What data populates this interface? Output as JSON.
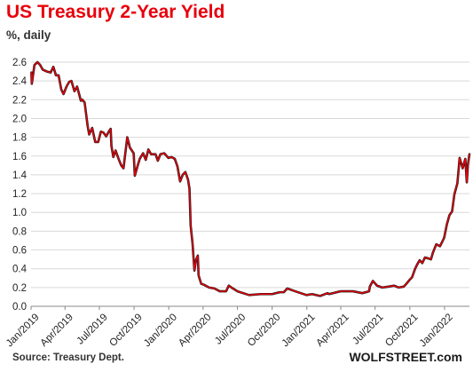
{
  "title": "US Treasury 2-Year Yield",
  "subtitle": "%, daily",
  "source": "Source: Treasury Dept.",
  "brand": "WOLFSTREET.com",
  "colors": {
    "title": "#e8000b",
    "line": "#e8000b",
    "line_shadow": "#1a1a1a",
    "grid": "#d9d9d9",
    "axis": "#888888"
  },
  "chart_data": {
    "type": "line",
    "title": "US Treasury 2-Year Yield",
    "ylabel": "%, daily",
    "ylim": [
      0.0,
      2.6
    ],
    "yticks": [
      "0.0",
      "0.2",
      "0.4",
      "0.6",
      "0.8",
      "1.0",
      "1.2",
      "1.4",
      "1.6",
      "1.8",
      "2.0",
      "2.2",
      "2.4",
      "2.6"
    ],
    "xlim": [
      "2019-01-01",
      "2022-03-08"
    ],
    "xticks": [
      {
        "date": "2019-01-01",
        "label": "Jan/2019"
      },
      {
        "date": "2019-04-01",
        "label": "Apr/2019"
      },
      {
        "date": "2019-07-01",
        "label": "Jul/2019"
      },
      {
        "date": "2019-10-01",
        "label": "Oct/2019"
      },
      {
        "date": "2020-01-01",
        "label": "Jan/2020"
      },
      {
        "date": "2020-04-01",
        "label": "Apr/2020"
      },
      {
        "date": "2020-07-01",
        "label": "Jul/2020"
      },
      {
        "date": "2020-10-01",
        "label": "Oct/2020"
      },
      {
        "date": "2021-01-01",
        "label": "Jan/2021"
      },
      {
        "date": "2021-04-01",
        "label": "Apr/2021"
      },
      {
        "date": "2021-07-01",
        "label": "Jul/2021"
      },
      {
        "date": "2021-10-01",
        "label": "Oct/2021"
      },
      {
        "date": "2022-01-01",
        "label": "Jan/2022"
      }
    ],
    "grid": "horizontal",
    "series": [
      {
        "points": [
          [
            "2019-01-02",
            2.49
          ],
          [
            "2019-01-03",
            2.37
          ],
          [
            "2019-01-10",
            2.57
          ],
          [
            "2019-01-18",
            2.6
          ],
          [
            "2019-01-25",
            2.57
          ],
          [
            "2019-02-01",
            2.52
          ],
          [
            "2019-02-12",
            2.5
          ],
          [
            "2019-02-22",
            2.49
          ],
          [
            "2019-03-01",
            2.55
          ],
          [
            "2019-03-08",
            2.46
          ],
          [
            "2019-03-15",
            2.46
          ],
          [
            "2019-03-22",
            2.31
          ],
          [
            "2019-03-28",
            2.26
          ],
          [
            "2019-04-05",
            2.34
          ],
          [
            "2019-04-12",
            2.39
          ],
          [
            "2019-04-18",
            2.4
          ],
          [
            "2019-04-26",
            2.29
          ],
          [
            "2019-05-03",
            2.34
          ],
          [
            "2019-05-13",
            2.19
          ],
          [
            "2019-05-17",
            2.2
          ],
          [
            "2019-05-23",
            2.17
          ],
          [
            "2019-05-31",
            1.92
          ],
          [
            "2019-06-04",
            1.83
          ],
          [
            "2019-06-12",
            1.9
          ],
          [
            "2019-06-20",
            1.75
          ],
          [
            "2019-06-28",
            1.75
          ],
          [
            "2019-07-05",
            1.86
          ],
          [
            "2019-07-12",
            1.85
          ],
          [
            "2019-07-19",
            1.81
          ],
          [
            "2019-07-26",
            1.86
          ],
          [
            "2019-07-31",
            1.89
          ],
          [
            "2019-08-02",
            1.71
          ],
          [
            "2019-08-07",
            1.59
          ],
          [
            "2019-08-13",
            1.66
          ],
          [
            "2019-08-21",
            1.57
          ],
          [
            "2019-08-28",
            1.5
          ],
          [
            "2019-09-03",
            1.47
          ],
          [
            "2019-09-13",
            1.8
          ],
          [
            "2019-09-20",
            1.69
          ],
          [
            "2019-09-30",
            1.63
          ],
          [
            "2019-10-03",
            1.39
          ],
          [
            "2019-10-10",
            1.49
          ],
          [
            "2019-10-16",
            1.57
          ],
          [
            "2019-10-25",
            1.63
          ],
          [
            "2019-11-01",
            1.56
          ],
          [
            "2019-11-08",
            1.67
          ],
          [
            "2019-11-15",
            1.62
          ],
          [
            "2019-11-27",
            1.62
          ],
          [
            "2019-12-03",
            1.55
          ],
          [
            "2019-12-10",
            1.62
          ],
          [
            "2019-12-20",
            1.63
          ],
          [
            "2019-12-31",
            1.58
          ],
          [
            "2020-01-08",
            1.59
          ],
          [
            "2020-01-17",
            1.57
          ],
          [
            "2020-01-24",
            1.49
          ],
          [
            "2020-01-31",
            1.33
          ],
          [
            "2020-02-07",
            1.4
          ],
          [
            "2020-02-14",
            1.43
          ],
          [
            "2020-02-21",
            1.35
          ],
          [
            "2020-02-25",
            1.25
          ],
          [
            "2020-02-28",
            0.86
          ],
          [
            "2020-03-04",
            0.67
          ],
          [
            "2020-03-09",
            0.38
          ],
          [
            "2020-03-13",
            0.49
          ],
          [
            "2020-03-18",
            0.54
          ],
          [
            "2020-03-20",
            0.33
          ],
          [
            "2020-03-27",
            0.24
          ],
          [
            "2020-04-03",
            0.23
          ],
          [
            "2020-04-17",
            0.2
          ],
          [
            "2020-05-01",
            0.19
          ],
          [
            "2020-05-15",
            0.16
          ],
          [
            "2020-06-01",
            0.16
          ],
          [
            "2020-06-08",
            0.22
          ],
          [
            "2020-06-19",
            0.19
          ],
          [
            "2020-07-01",
            0.16
          ],
          [
            "2020-08-01",
            0.12
          ],
          [
            "2020-09-01",
            0.13
          ],
          [
            "2020-10-01",
            0.13
          ],
          [
            "2020-10-21",
            0.15
          ],
          [
            "2020-11-01",
            0.15
          ],
          [
            "2020-11-10",
            0.19
          ],
          [
            "2020-12-01",
            0.16
          ],
          [
            "2020-12-31",
            0.12
          ],
          [
            "2021-01-15",
            0.13
          ],
          [
            "2021-02-05",
            0.11
          ],
          [
            "2021-02-25",
            0.14
          ],
          [
            "2021-03-01",
            0.13
          ],
          [
            "2021-03-31",
            0.16
          ],
          [
            "2021-04-15",
            0.16
          ],
          [
            "2021-05-03",
            0.16
          ],
          [
            "2021-05-28",
            0.14
          ],
          [
            "2021-06-15",
            0.16
          ],
          [
            "2021-06-17",
            0.21
          ],
          [
            "2021-06-25",
            0.27
          ],
          [
            "2021-07-06",
            0.22
          ],
          [
            "2021-07-20",
            0.2
          ],
          [
            "2021-08-06",
            0.21
          ],
          [
            "2021-08-20",
            0.22
          ],
          [
            "2021-09-01",
            0.2
          ],
          [
            "2021-09-15",
            0.21
          ],
          [
            "2021-09-22",
            0.24
          ],
          [
            "2021-09-30",
            0.28
          ],
          [
            "2021-10-07",
            0.31
          ],
          [
            "2021-10-15",
            0.4
          ],
          [
            "2021-10-21",
            0.45
          ],
          [
            "2021-10-27",
            0.49
          ],
          [
            "2021-11-03",
            0.46
          ],
          [
            "2021-11-10",
            0.52
          ],
          [
            "2021-11-19",
            0.51
          ],
          [
            "2021-11-26",
            0.5
          ],
          [
            "2021-12-01",
            0.57
          ],
          [
            "2021-12-10",
            0.66
          ],
          [
            "2021-12-20",
            0.64
          ],
          [
            "2021-12-31",
            0.73
          ],
          [
            "2022-01-07",
            0.87
          ],
          [
            "2022-01-14",
            0.97
          ],
          [
            "2022-01-21",
            1.01
          ],
          [
            "2022-01-27",
            1.19
          ],
          [
            "2022-02-04",
            1.31
          ],
          [
            "2022-02-10",
            1.58
          ],
          [
            "2022-02-18",
            1.47
          ],
          [
            "2022-02-25",
            1.57
          ],
          [
            "2022-03-01",
            1.32
          ],
          [
            "2022-03-04",
            1.51
          ],
          [
            "2022-03-08",
            1.62
          ]
        ]
      }
    ]
  }
}
